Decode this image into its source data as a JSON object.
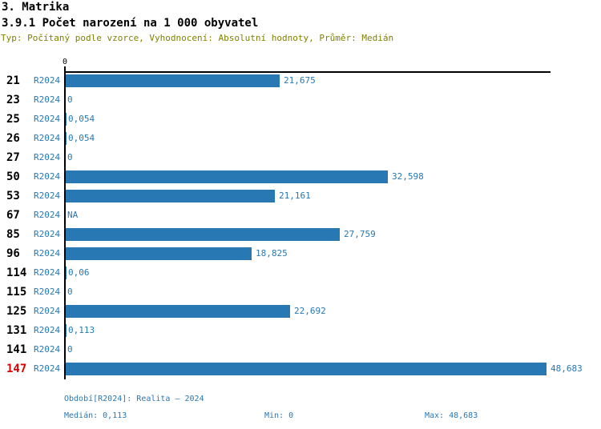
{
  "header": {
    "title": "3. Matrika",
    "subtitle": "3.9.1 Počet narození na 1 000 obyvatel",
    "meta": "Typ: Počítaný podle vzorce, Vyhodnocení: Absolutní hodnoty, Průměr: Medián"
  },
  "colors": {
    "bar": "#2878b4",
    "blue_text": "#2878b4",
    "highlight": "#dd0000",
    "meta_text": "#808000",
    "axis": "#000000"
  },
  "chart_data": {
    "type": "bar",
    "orientation": "horizontal",
    "title": "3.9.1 Počet narození na 1 000 obyvatel",
    "xlabel": "",
    "ylabel": "",
    "xlim": [
      0,
      49.2
    ],
    "x_tick_labels": [
      "0"
    ],
    "grid": false,
    "max_value": 48.683,
    "series_name": "R2024",
    "categories": [
      "21",
      "23",
      "25",
      "26",
      "27",
      "50",
      "53",
      "67",
      "85",
      "96",
      "114",
      "115",
      "125",
      "131",
      "141",
      "147"
    ],
    "rows": [
      {
        "category": "21",
        "period": "R2024",
        "value": 21.675,
        "value_label": "21,675",
        "highlight": false
      },
      {
        "category": "23",
        "period": "R2024",
        "value": 0,
        "value_label": "0",
        "highlight": false
      },
      {
        "category": "25",
        "period": "R2024",
        "value": 0.054,
        "value_label": "0,054",
        "highlight": false
      },
      {
        "category": "26",
        "period": "R2024",
        "value": 0.054,
        "value_label": "0,054",
        "highlight": false
      },
      {
        "category": "27",
        "period": "R2024",
        "value": 0,
        "value_label": "0",
        "highlight": false
      },
      {
        "category": "50",
        "period": "R2024",
        "value": 32.598,
        "value_label": "32,598",
        "highlight": false
      },
      {
        "category": "53",
        "period": "R2024",
        "value": 21.161,
        "value_label": "21,161",
        "highlight": false
      },
      {
        "category": "67",
        "period": "R2024",
        "value": null,
        "value_label": "NA",
        "highlight": false
      },
      {
        "category": "85",
        "period": "R2024",
        "value": 27.759,
        "value_label": "27,759",
        "highlight": false
      },
      {
        "category": "96",
        "period": "R2024",
        "value": 18.825,
        "value_label": "18,825",
        "highlight": false
      },
      {
        "category": "114",
        "period": "R2024",
        "value": 0.06,
        "value_label": "0,06",
        "highlight": false
      },
      {
        "category": "115",
        "period": "R2024",
        "value": 0,
        "value_label": "0",
        "highlight": false
      },
      {
        "category": "125",
        "period": "R2024",
        "value": 22.692,
        "value_label": "22,692",
        "highlight": false
      },
      {
        "category": "131",
        "period": "R2024",
        "value": 0.113,
        "value_label": "0,113",
        "highlight": false
      },
      {
        "category": "141",
        "period": "R2024",
        "value": 0,
        "value_label": "0",
        "highlight": false
      },
      {
        "category": "147",
        "period": "R2024",
        "value": 48.683,
        "value_label": "48,683",
        "highlight": true
      }
    ]
  },
  "footer": {
    "period_line": "Období[R2024]: Realita – 2024",
    "median_label": "Medián: 0,113",
    "min_label": "Min: 0",
    "max_label": "Max: 48,683"
  }
}
